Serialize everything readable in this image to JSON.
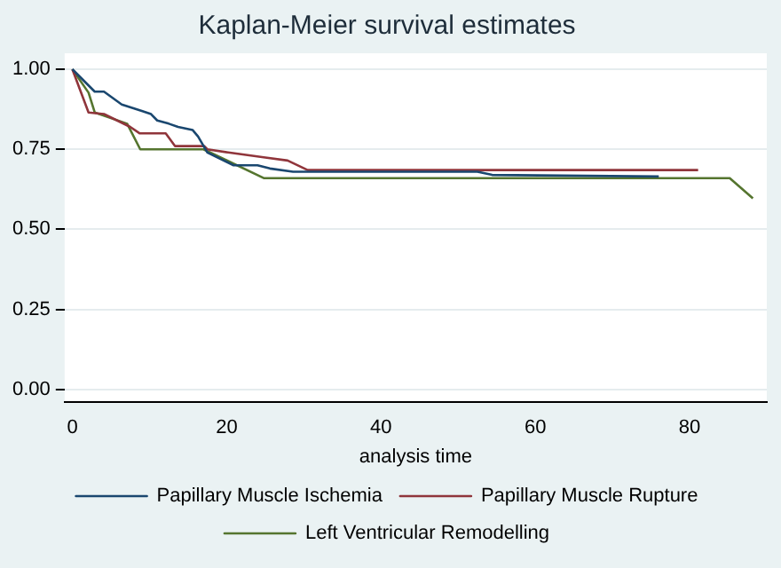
{
  "chart_data": {
    "type": "line",
    "title": "Kaplan-Meier survival estimates",
    "xlabel": "analysis time",
    "xlim": [
      -1,
      90
    ],
    "xticks": [
      0,
      20,
      40,
      60,
      80
    ],
    "ylim": [
      -0.04,
      1.05
    ],
    "yticks": [
      {
        "value": 0,
        "label": "0.00"
      },
      {
        "value": 0.25,
        "label": "0.25"
      },
      {
        "value": 0.5,
        "label": "0.50"
      },
      {
        "value": 0.75,
        "label": "0.75"
      },
      {
        "value": 1,
        "label": "1.00"
      }
    ],
    "grid": "y",
    "legend": "bottom",
    "marker": "none",
    "line_style": "solid",
    "series": [
      {
        "name": "Papillary Muscle Ischemia",
        "color": "#1a476f",
        "x": [
          0,
          2.9,
          4.1,
          6.4,
          9,
          10.2,
          11,
          12.5,
          13.7,
          15.6,
          16.3,
          17.5,
          20.9,
          24,
          25.6,
          28.6,
          31,
          52.5,
          54.4,
          76
        ],
        "values": [
          1,
          0.93,
          0.93,
          0.89,
          0.87,
          0.86,
          0.84,
          0.83,
          0.82,
          0.81,
          0.79,
          0.74,
          0.7,
          0.7,
          0.69,
          0.68,
          0.68,
          0.68,
          0.67,
          0.665
        ]
      },
      {
        "name": "Papillary Muscle Rupture",
        "color": "#90353b",
        "x": [
          0,
          2.1,
          4.1,
          7.5,
          8.7,
          12.1,
          13.3,
          17.1,
          17.5,
          20.2,
          24.8,
          27.9,
          30.5,
          81.1
        ],
        "values": [
          1,
          0.865,
          0.86,
          0.82,
          0.8,
          0.8,
          0.76,
          0.76,
          0.75,
          0.74,
          0.725,
          0.715,
          0.685,
          0.685
        ]
      },
      {
        "name": "Left Ventricular Remodelling",
        "color": "#55752f",
        "x": [
          0,
          2.1,
          2.9,
          7.1,
          8.8,
          17,
          24.8,
          85.2,
          88.2
        ],
        "values": [
          1,
          0.927,
          0.865,
          0.83,
          0.75,
          0.75,
          0.66,
          0.66,
          0.597
        ]
      }
    ]
  }
}
